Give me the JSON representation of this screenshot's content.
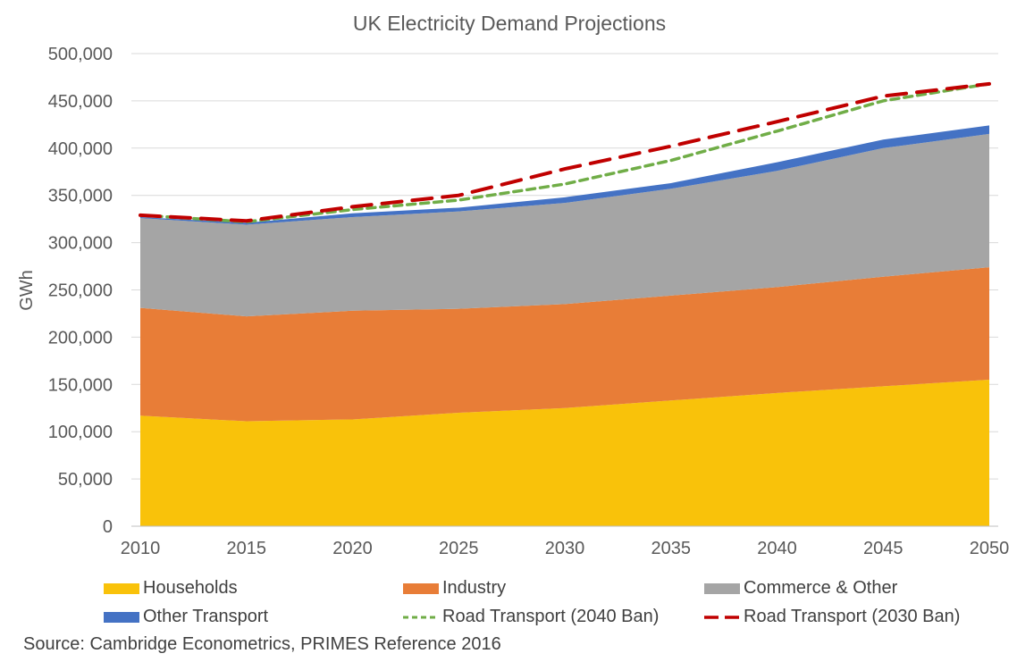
{
  "chart_data": {
    "type": "area",
    "title": "UK Electricity Demand Projections",
    "ylabel": "GWh",
    "xlabel": "",
    "x": [
      2010,
      2015,
      2020,
      2025,
      2030,
      2035,
      2040,
      2045,
      2050
    ],
    "xticks": [
      "2010",
      "2015",
      "2020",
      "2025",
      "2030",
      "2035",
      "2040",
      "2045",
      "2050"
    ],
    "yticks": [
      "0",
      "50,000",
      "100,000",
      "150,000",
      "200,000",
      "250,000",
      "300,000",
      "350,000",
      "400,000",
      "450,000",
      "500,000"
    ],
    "ylim": [
      0,
      500000
    ],
    "grid": true,
    "legend_placement": "bottom",
    "stacked_series": [
      {
        "name": "Households",
        "color": "#F9C20A",
        "values": [
          117000,
          111000,
          113000,
          120000,
          125000,
          133000,
          141000,
          148000,
          155000
        ]
      },
      {
        "name": "Industry",
        "color": "#E87D37",
        "values": [
          114000,
          111000,
          115000,
          110000,
          110000,
          111000,
          112000,
          116000,
          119000
        ]
      },
      {
        "name": "Commerce & Other",
        "color": "#A5A5A5",
        "values": [
          95000,
          97000,
          99000,
          103000,
          107000,
          113000,
          123000,
          136000,
          141000
        ]
      },
      {
        "name": "Other Transport",
        "color": "#4472C4",
        "values": [
          1000,
          2000,
          4000,
          4000,
          6000,
          6000,
          9000,
          9000,
          9000
        ]
      }
    ],
    "line_series": [
      {
        "name": "Road Transport (2040 Ban)",
        "color": "#70AD47",
        "dash": "short",
        "values": [
          329000,
          322000,
          335000,
          345000,
          362000,
          387000,
          418000,
          450000,
          468000
        ]
      },
      {
        "name": "Road Transport (2030 Ban)",
        "color": "#C00000",
        "dash": "long",
        "values": [
          329000,
          323000,
          338000,
          350000,
          378000,
          402000,
          428000,
          455000,
          468000
        ]
      }
    ]
  },
  "source": "Source: Cambridge Econometrics, PRIMES Reference 2016"
}
